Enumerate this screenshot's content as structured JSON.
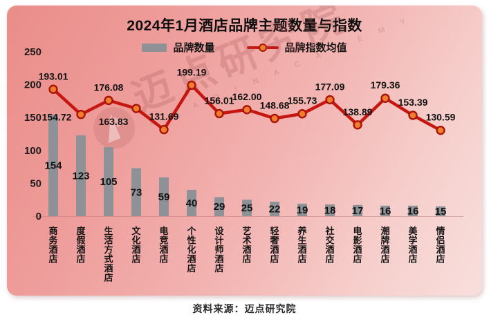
{
  "card": {
    "title": "2024年1月酒店品牌主题数量与指数"
  },
  "legend": [
    {
      "label": "品牌数量"
    },
    {
      "label": "品牌指数均值"
    }
  ],
  "watermark": {
    "text": "迈点研究院",
    "subtext": "M E A D I N   A C A D E M Y"
  },
  "footer": {
    "source": "资料来源：迈点研究院"
  },
  "chart_data": {
    "type": "combo",
    "title": "2024年1月酒店品牌主题数量与指数",
    "xlabel": "",
    "ylabel": "",
    "categories": [
      "商务酒店",
      "度假酒店",
      "生活方式酒店",
      "文化酒店",
      "电竞酒店",
      "个性化酒店",
      "设计师酒店",
      "艺术酒店",
      "轻奢酒店",
      "养生酒店",
      "社交酒店",
      "电影酒店",
      "潮牌酒店",
      "美学酒店",
      "情侣酒店"
    ],
    "series": [
      {
        "name": "品牌数量",
        "type": "bar",
        "values": [
          154,
          123,
          105,
          73,
          59,
          40,
          29,
          25,
          22,
          19,
          18,
          17,
          16,
          16,
          15
        ],
        "color": "#8e9196"
      },
      {
        "name": "品牌指数均值",
        "type": "line",
        "values": [
          193.01,
          154.72,
          176.08,
          163.83,
          131.69,
          199.19,
          156.01,
          162.0,
          148.68,
          155.73,
          177.09,
          138.89,
          179.36,
          153.39,
          130.59
        ],
        "labels": [
          "193.01",
          "154.72",
          "176.08",
          "163.83",
          "131.69",
          "199.19",
          "156.01",
          "162.00",
          "148.68",
          "155.73",
          "177.09",
          "138.89",
          "179.36",
          "153.39",
          "130.59"
        ],
        "color": "#c5170f",
        "marker_fill": "#f07f2d",
        "marker_stroke": "#a81408"
      }
    ],
    "yticks": [
      0,
      50,
      100,
      150,
      200,
      250
    ],
    "ylim": [
      0,
      250
    ],
    "grid": false,
    "legend_position": "top"
  }
}
